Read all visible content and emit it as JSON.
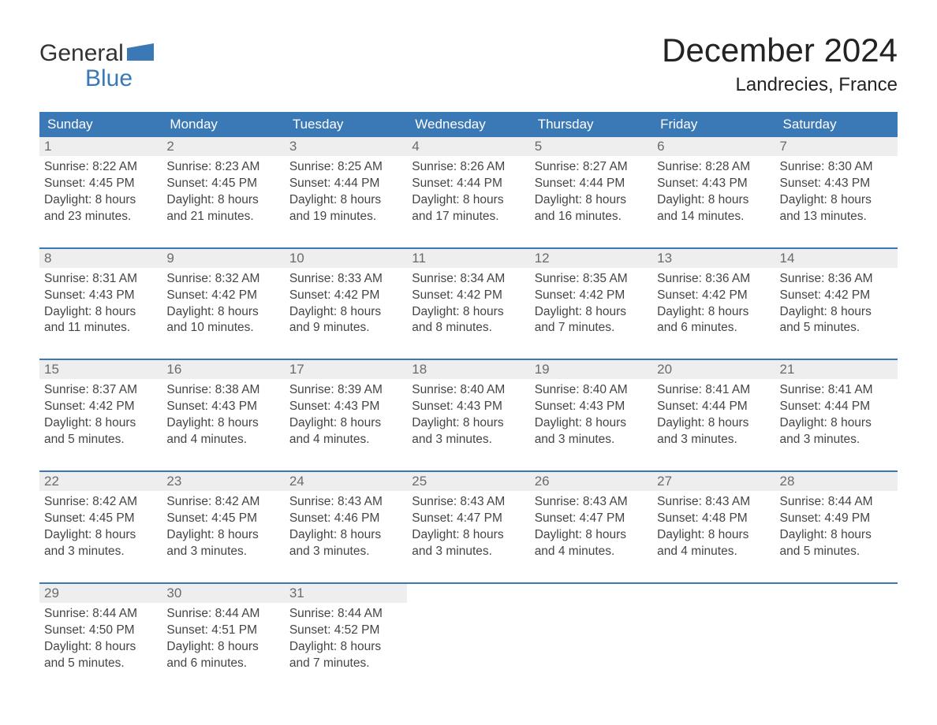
{
  "brand": {
    "line1": "General",
    "line2": "Blue",
    "accent_color": "#3a78b6"
  },
  "title": "December 2024",
  "location": "Landrecies, France",
  "colors": {
    "header_bg": "#3a78b6",
    "header_text": "#ffffff",
    "daynum_bg": "#eeeeee",
    "daynum_text": "#6b6b6b",
    "body_text": "#454545",
    "rule": "#3a78b6"
  },
  "day_headers": [
    "Sunday",
    "Monday",
    "Tuesday",
    "Wednesday",
    "Thursday",
    "Friday",
    "Saturday"
  ],
  "weeks": [
    [
      {
        "n": "1",
        "sunrise": "Sunrise: 8:22 AM",
        "sunset": "Sunset: 4:45 PM",
        "d1": "Daylight: 8 hours",
        "d2": "and 23 minutes."
      },
      {
        "n": "2",
        "sunrise": "Sunrise: 8:23 AM",
        "sunset": "Sunset: 4:45 PM",
        "d1": "Daylight: 8 hours",
        "d2": "and 21 minutes."
      },
      {
        "n": "3",
        "sunrise": "Sunrise: 8:25 AM",
        "sunset": "Sunset: 4:44 PM",
        "d1": "Daylight: 8 hours",
        "d2": "and 19 minutes."
      },
      {
        "n": "4",
        "sunrise": "Sunrise: 8:26 AM",
        "sunset": "Sunset: 4:44 PM",
        "d1": "Daylight: 8 hours",
        "d2": "and 17 minutes."
      },
      {
        "n": "5",
        "sunrise": "Sunrise: 8:27 AM",
        "sunset": "Sunset: 4:44 PM",
        "d1": "Daylight: 8 hours",
        "d2": "and 16 minutes."
      },
      {
        "n": "6",
        "sunrise": "Sunrise: 8:28 AM",
        "sunset": "Sunset: 4:43 PM",
        "d1": "Daylight: 8 hours",
        "d2": "and 14 minutes."
      },
      {
        "n": "7",
        "sunrise": "Sunrise: 8:30 AM",
        "sunset": "Sunset: 4:43 PM",
        "d1": "Daylight: 8 hours",
        "d2": "and 13 minutes."
      }
    ],
    [
      {
        "n": "8",
        "sunrise": "Sunrise: 8:31 AM",
        "sunset": "Sunset: 4:43 PM",
        "d1": "Daylight: 8 hours",
        "d2": "and 11 minutes."
      },
      {
        "n": "9",
        "sunrise": "Sunrise: 8:32 AM",
        "sunset": "Sunset: 4:42 PM",
        "d1": "Daylight: 8 hours",
        "d2": "and 10 minutes."
      },
      {
        "n": "10",
        "sunrise": "Sunrise: 8:33 AM",
        "sunset": "Sunset: 4:42 PM",
        "d1": "Daylight: 8 hours",
        "d2": "and 9 minutes."
      },
      {
        "n": "11",
        "sunrise": "Sunrise: 8:34 AM",
        "sunset": "Sunset: 4:42 PM",
        "d1": "Daylight: 8 hours",
        "d2": "and 8 minutes."
      },
      {
        "n": "12",
        "sunrise": "Sunrise: 8:35 AM",
        "sunset": "Sunset: 4:42 PM",
        "d1": "Daylight: 8 hours",
        "d2": "and 7 minutes."
      },
      {
        "n": "13",
        "sunrise": "Sunrise: 8:36 AM",
        "sunset": "Sunset: 4:42 PM",
        "d1": "Daylight: 8 hours",
        "d2": "and 6 minutes."
      },
      {
        "n": "14",
        "sunrise": "Sunrise: 8:36 AM",
        "sunset": "Sunset: 4:42 PM",
        "d1": "Daylight: 8 hours",
        "d2": "and 5 minutes."
      }
    ],
    [
      {
        "n": "15",
        "sunrise": "Sunrise: 8:37 AM",
        "sunset": "Sunset: 4:42 PM",
        "d1": "Daylight: 8 hours",
        "d2": "and 5 minutes."
      },
      {
        "n": "16",
        "sunrise": "Sunrise: 8:38 AM",
        "sunset": "Sunset: 4:43 PM",
        "d1": "Daylight: 8 hours",
        "d2": "and 4 minutes."
      },
      {
        "n": "17",
        "sunrise": "Sunrise: 8:39 AM",
        "sunset": "Sunset: 4:43 PM",
        "d1": "Daylight: 8 hours",
        "d2": "and 4 minutes."
      },
      {
        "n": "18",
        "sunrise": "Sunrise: 8:40 AM",
        "sunset": "Sunset: 4:43 PM",
        "d1": "Daylight: 8 hours",
        "d2": "and 3 minutes."
      },
      {
        "n": "19",
        "sunrise": "Sunrise: 8:40 AM",
        "sunset": "Sunset: 4:43 PM",
        "d1": "Daylight: 8 hours",
        "d2": "and 3 minutes."
      },
      {
        "n": "20",
        "sunrise": "Sunrise: 8:41 AM",
        "sunset": "Sunset: 4:44 PM",
        "d1": "Daylight: 8 hours",
        "d2": "and 3 minutes."
      },
      {
        "n": "21",
        "sunrise": "Sunrise: 8:41 AM",
        "sunset": "Sunset: 4:44 PM",
        "d1": "Daylight: 8 hours",
        "d2": "and 3 minutes."
      }
    ],
    [
      {
        "n": "22",
        "sunrise": "Sunrise: 8:42 AM",
        "sunset": "Sunset: 4:45 PM",
        "d1": "Daylight: 8 hours",
        "d2": "and 3 minutes."
      },
      {
        "n": "23",
        "sunrise": "Sunrise: 8:42 AM",
        "sunset": "Sunset: 4:45 PM",
        "d1": "Daylight: 8 hours",
        "d2": "and 3 minutes."
      },
      {
        "n": "24",
        "sunrise": "Sunrise: 8:43 AM",
        "sunset": "Sunset: 4:46 PM",
        "d1": "Daylight: 8 hours",
        "d2": "and 3 minutes."
      },
      {
        "n": "25",
        "sunrise": "Sunrise: 8:43 AM",
        "sunset": "Sunset: 4:47 PM",
        "d1": "Daylight: 8 hours",
        "d2": "and 3 minutes."
      },
      {
        "n": "26",
        "sunrise": "Sunrise: 8:43 AM",
        "sunset": "Sunset: 4:47 PM",
        "d1": "Daylight: 8 hours",
        "d2": "and 4 minutes."
      },
      {
        "n": "27",
        "sunrise": "Sunrise: 8:43 AM",
        "sunset": "Sunset: 4:48 PM",
        "d1": "Daylight: 8 hours",
        "d2": "and 4 minutes."
      },
      {
        "n": "28",
        "sunrise": "Sunrise: 8:44 AM",
        "sunset": "Sunset: 4:49 PM",
        "d1": "Daylight: 8 hours",
        "d2": "and 5 minutes."
      }
    ],
    [
      {
        "n": "29",
        "sunrise": "Sunrise: 8:44 AM",
        "sunset": "Sunset: 4:50 PM",
        "d1": "Daylight: 8 hours",
        "d2": "and 5 minutes."
      },
      {
        "n": "30",
        "sunrise": "Sunrise: 8:44 AM",
        "sunset": "Sunset: 4:51 PM",
        "d1": "Daylight: 8 hours",
        "d2": "and 6 minutes."
      },
      {
        "n": "31",
        "sunrise": "Sunrise: 8:44 AM",
        "sunset": "Sunset: 4:52 PM",
        "d1": "Daylight: 8 hours",
        "d2": "and 7 minutes."
      },
      null,
      null,
      null,
      null
    ]
  ]
}
